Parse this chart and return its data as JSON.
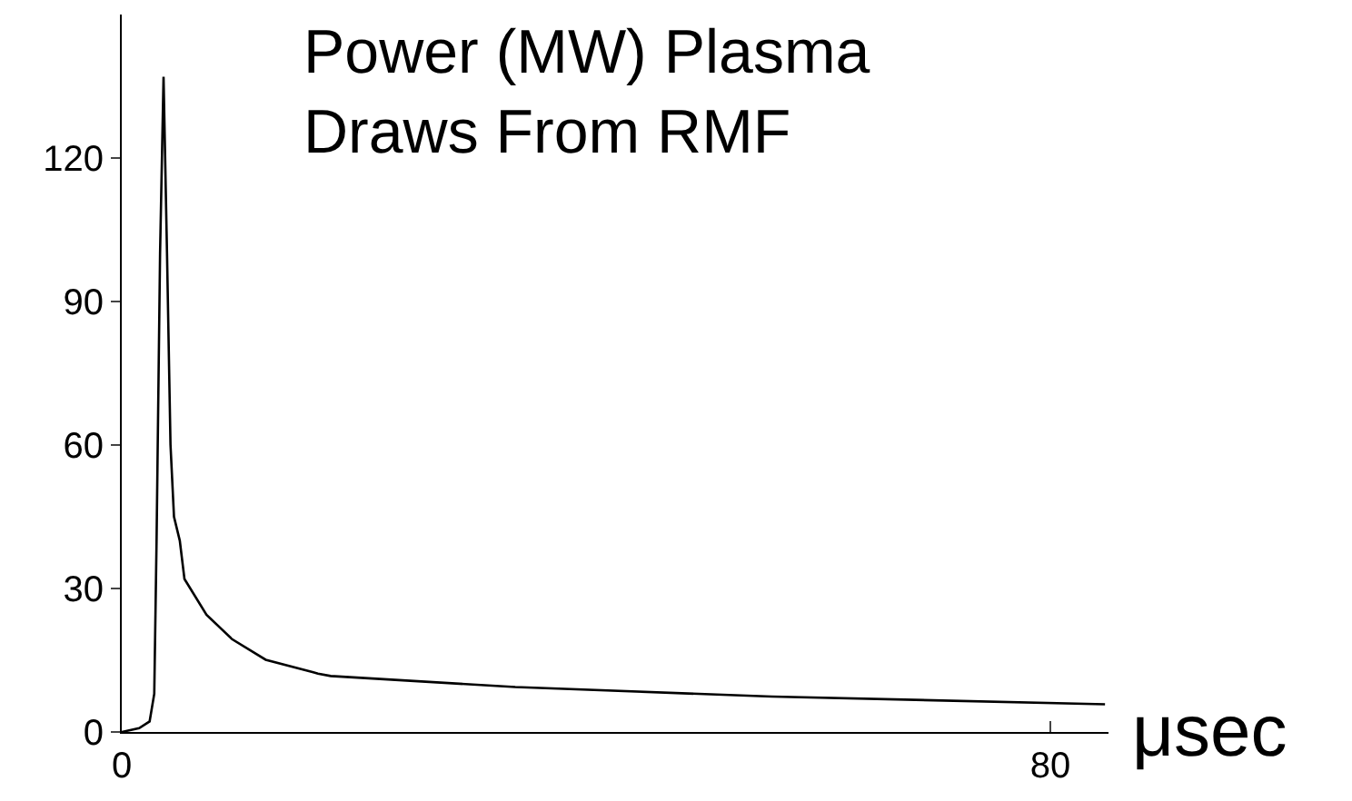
{
  "chart_data": {
    "type": "line",
    "title": "Power (MW) Plasma\nDraws From RMF",
    "xlabel": "μsec",
    "x": [
      0,
      1.5,
      2.4,
      2.8,
      3.0,
      3.3,
      3.6,
      3.9,
      4.2,
      4.5,
      5.0,
      5.4,
      7.3,
      9.5,
      12.4,
      16.5,
      16.9,
      18,
      33.9,
      56,
      84.7
    ],
    "series": [
      {
        "color": "#000000",
        "values": [
          0,
          0.8,
          2.2,
          8,
          40,
          100,
          137,
          100,
          60,
          45,
          40,
          32,
          24.5,
          19.4,
          15.1,
          12.5,
          12.2,
          11.7,
          9.4,
          7.4,
          5.8
        ]
      }
    ],
    "xlim": [
      0,
      85
    ],
    "ylim": [
      0,
      150
    ],
    "xticks": [
      0,
      80
    ],
    "yticks": [
      0,
      30,
      60,
      90,
      120
    ],
    "legend": false,
    "marker": "none",
    "line_style": "solid"
  }
}
